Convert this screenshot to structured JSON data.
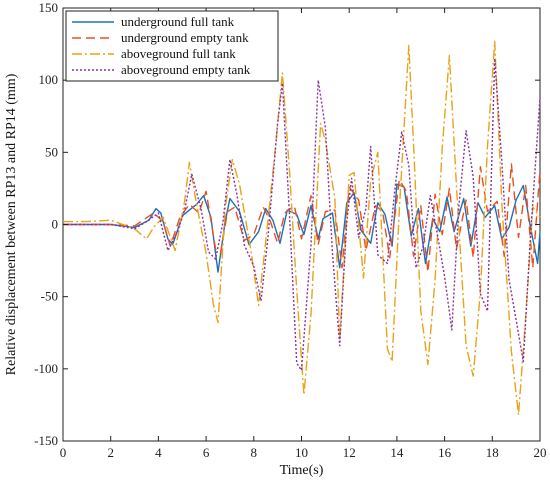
{
  "chart_data": {
    "type": "line",
    "title": "",
    "xlabel": "Time(s)",
    "ylabel": "Relative displacement between RP13 and RP14 (mm)",
    "xlim": [
      0,
      20
    ],
    "ylim": [
      -150,
      150
    ],
    "xticks": [
      0,
      2,
      4,
      6,
      8,
      10,
      12,
      14,
      16,
      18,
      20
    ],
    "yticks": [
      -150,
      -100,
      -50,
      0,
      50,
      100,
      150
    ],
    "grid": false,
    "legend_position": "top-left",
    "series": [
      {
        "name": "underground full tank",
        "color": "#1f6fb8",
        "dash": "solid",
        "points": [
          [
            0,
            0
          ],
          [
            1,
            0
          ],
          [
            2,
            0
          ],
          [
            3,
            -2
          ],
          [
            3.6,
            3
          ],
          [
            3.9,
            11
          ],
          [
            4.1,
            8
          ],
          [
            4.4,
            -10
          ],
          [
            4.6,
            -14
          ],
          [
            4.8,
            -4
          ],
          [
            5.0,
            6
          ],
          [
            5.3,
            10
          ],
          [
            5.6,
            14
          ],
          [
            5.9,
            20
          ],
          [
            6.2,
            5
          ],
          [
            6.5,
            -33
          ],
          [
            6.8,
            2
          ],
          [
            7.0,
            18
          ],
          [
            7.4,
            9
          ],
          [
            7.8,
            -14
          ],
          [
            8.2,
            -5
          ],
          [
            8.5,
            11
          ],
          [
            8.8,
            3
          ],
          [
            9.1,
            -13
          ],
          [
            9.4,
            10
          ],
          [
            9.8,
            7
          ],
          [
            10.1,
            -7
          ],
          [
            10.4,
            13
          ],
          [
            10.7,
            -10
          ],
          [
            10.9,
            4
          ],
          [
            11.3,
            8
          ],
          [
            11.6,
            -30
          ],
          [
            11.9,
            15
          ],
          [
            12.2,
            22
          ],
          [
            12.5,
            -4
          ],
          [
            12.9,
            -13
          ],
          [
            13.2,
            15
          ],
          [
            13.5,
            7
          ],
          [
            13.8,
            -15
          ],
          [
            14.0,
            28
          ],
          [
            14.3,
            26
          ],
          [
            14.6,
            -8
          ],
          [
            14.9,
            11
          ],
          [
            15.2,
            -27
          ],
          [
            15.5,
            4
          ],
          [
            15.8,
            -5
          ],
          [
            16.1,
            19
          ],
          [
            16.4,
            -5
          ],
          [
            16.8,
            18
          ],
          [
            17.1,
            -15
          ],
          [
            17.4,
            15
          ],
          [
            17.7,
            5
          ],
          [
            18.1,
            13
          ],
          [
            18.4,
            -10
          ],
          [
            18.7,
            -2
          ],
          [
            19.0,
            17
          ],
          [
            19.3,
            27
          ],
          [
            19.6,
            -2
          ],
          [
            19.9,
            -27
          ],
          [
            20,
            -5
          ]
        ]
      },
      {
        "name": "underground empty tank",
        "color": "#e8501e",
        "dash": "9,5",
        "points": [
          [
            0,
            0
          ],
          [
            1,
            0
          ],
          [
            2,
            0
          ],
          [
            3,
            -1
          ],
          [
            3.8,
            8
          ],
          [
            4.2,
            2
          ],
          [
            4.5,
            -15
          ],
          [
            4.9,
            5
          ],
          [
            5.3,
            14
          ],
          [
            5.7,
            8
          ],
          [
            6.0,
            23
          ],
          [
            6.4,
            -17
          ],
          [
            6.6,
            -20
          ],
          [
            6.9,
            9
          ],
          [
            7.2,
            12
          ],
          [
            7.6,
            -11
          ],
          [
            8.0,
            -7
          ],
          [
            8.4,
            12
          ],
          [
            8.7,
            2
          ],
          [
            9.0,
            -13
          ],
          [
            9.3,
            8
          ],
          [
            9.7,
            13
          ],
          [
            10.0,
            -10
          ],
          [
            10.4,
            20
          ],
          [
            10.7,
            -14
          ],
          [
            11.0,
            9
          ],
          [
            11.4,
            10
          ],
          [
            11.7,
            -30
          ],
          [
            12.0,
            26
          ],
          [
            12.4,
            17
          ],
          [
            12.7,
            -18
          ],
          [
            13.1,
            13
          ],
          [
            13.4,
            9
          ],
          [
            13.7,
            -23
          ],
          [
            14.1,
            31
          ],
          [
            14.4,
            23
          ],
          [
            14.7,
            -22
          ],
          [
            15.0,
            13
          ],
          [
            15.3,
            -33
          ],
          [
            15.6,
            21
          ],
          [
            15.9,
            -7
          ],
          [
            16.2,
            25
          ],
          [
            16.5,
            -17
          ],
          [
            16.9,
            17
          ],
          [
            17.2,
            -23
          ],
          [
            17.5,
            40
          ],
          [
            17.8,
            9
          ],
          [
            18.2,
            16
          ],
          [
            18.5,
            -22
          ],
          [
            18.8,
            42
          ],
          [
            19.1,
            -9
          ],
          [
            19.4,
            27
          ],
          [
            19.7,
            -30
          ],
          [
            20,
            38
          ]
        ]
      },
      {
        "name": "aboveground full tank",
        "color": "#e8a317",
        "dash": "10,3,2,3",
        "points": [
          [
            0,
            2
          ],
          [
            1,
            2
          ],
          [
            2,
            3
          ],
          [
            3,
            -3
          ],
          [
            3.5,
            -10
          ],
          [
            3.8,
            -2
          ],
          [
            4.2,
            5
          ],
          [
            4.7,
            -18
          ],
          [
            5.1,
            16
          ],
          [
            5.3,
            43
          ],
          [
            5.6,
            14
          ],
          [
            6.0,
            -20
          ],
          [
            6.3,
            -55
          ],
          [
            6.5,
            -68
          ],
          [
            6.8,
            11
          ],
          [
            7.1,
            45
          ],
          [
            7.4,
            28
          ],
          [
            7.9,
            -20
          ],
          [
            8.2,
            -56
          ],
          [
            8.5,
            -12
          ],
          [
            8.9,
            52
          ],
          [
            9.2,
            105
          ],
          [
            9.5,
            36
          ],
          [
            9.8,
            -45
          ],
          [
            10.1,
            -118
          ],
          [
            10.4,
            -62
          ],
          [
            10.8,
            70
          ],
          [
            11.0,
            58
          ],
          [
            11.4,
            18
          ],
          [
            11.6,
            -80
          ],
          [
            12.0,
            34
          ],
          [
            12.2,
            36
          ],
          [
            12.6,
            -37
          ],
          [
            12.9,
            31
          ],
          [
            13.2,
            50
          ],
          [
            13.6,
            -86
          ],
          [
            13.8,
            -95
          ],
          [
            14.1,
            10
          ],
          [
            14.5,
            124
          ],
          [
            14.7,
            55
          ],
          [
            15.0,
            -60
          ],
          [
            15.3,
            -97
          ],
          [
            15.6,
            -38
          ],
          [
            15.9,
            53
          ],
          [
            16.2,
            117
          ],
          [
            16.5,
            26
          ],
          [
            16.9,
            -84
          ],
          [
            17.2,
            -105
          ],
          [
            17.5,
            -46
          ],
          [
            17.8,
            54
          ],
          [
            18.1,
            127
          ],
          [
            18.4,
            15
          ],
          [
            18.8,
            -88
          ],
          [
            19.1,
            -132
          ],
          [
            19.4,
            -64
          ],
          [
            19.7,
            12
          ],
          [
            20,
            5
          ]
        ]
      },
      {
        "name": "aboveground empty tank",
        "color": "#8a2f9e",
        "dash": "2,2",
        "points": [
          [
            0,
            0
          ],
          [
            1,
            0
          ],
          [
            2,
            0
          ],
          [
            3,
            -3
          ],
          [
            3.5,
            2
          ],
          [
            4.0,
            8
          ],
          [
            4.4,
            -18
          ],
          [
            4.8,
            -5
          ],
          [
            5.1,
            10
          ],
          [
            5.4,
            35
          ],
          [
            5.8,
            10
          ],
          [
            6.1,
            -19
          ],
          [
            6.4,
            -24
          ],
          [
            6.7,
            1
          ],
          [
            7.0,
            45
          ],
          [
            7.3,
            20
          ],
          [
            7.6,
            -14
          ],
          [
            8.0,
            -29
          ],
          [
            8.3,
            -53
          ],
          [
            8.6,
            -8
          ],
          [
            9.0,
            70
          ],
          [
            9.2,
            98
          ],
          [
            9.5,
            5
          ],
          [
            9.8,
            -96
          ],
          [
            10.0,
            -101
          ],
          [
            10.4,
            -14
          ],
          [
            10.7,
            100
          ],
          [
            11.0,
            67
          ],
          [
            11.3,
            -20
          ],
          [
            11.6,
            -84
          ],
          [
            11.9,
            2
          ],
          [
            12.1,
            32
          ],
          [
            12.4,
            -9
          ],
          [
            12.7,
            11
          ],
          [
            12.9,
            54
          ],
          [
            13.2,
            -21
          ],
          [
            13.6,
            -27
          ],
          [
            13.9,
            22
          ],
          [
            14.2,
            64
          ],
          [
            14.5,
            41
          ],
          [
            14.8,
            -30
          ],
          [
            15.1,
            -15
          ],
          [
            15.4,
            20
          ],
          [
            15.7,
            -7
          ],
          [
            16.0,
            -36
          ],
          [
            16.3,
            -73
          ],
          [
            16.6,
            13
          ],
          [
            16.9,
            65
          ],
          [
            17.2,
            33
          ],
          [
            17.5,
            -48
          ],
          [
            17.8,
            -60
          ],
          [
            18.1,
            115
          ],
          [
            18.4,
            44
          ],
          [
            18.7,
            -38
          ],
          [
            19.0,
            -66
          ],
          [
            19.3,
            -95
          ],
          [
            19.6,
            -8
          ],
          [
            20,
            88
          ]
        ]
      }
    ]
  }
}
